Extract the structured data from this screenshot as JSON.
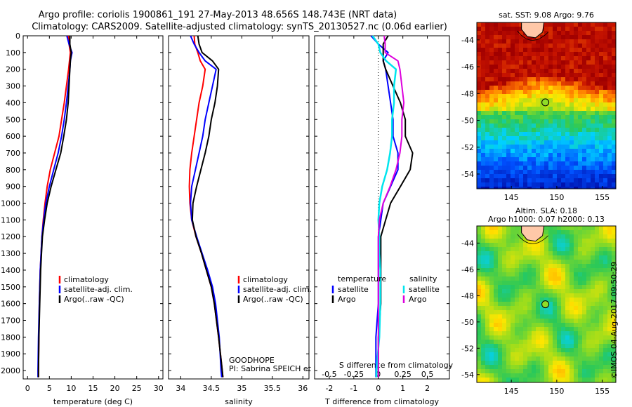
{
  "header": {
    "title_line1": "Argo profile: coriolis 1900861_191 27-May-2013 48.656S 148.743E (NRT data)",
    "title_line2": "Climatology: CARS2009. Satellite-adjusted climatology: synTS_20130527.nc (0.06d earlier)"
  },
  "depth_ticks": [
    0,
    100,
    200,
    300,
    400,
    500,
    600,
    700,
    800,
    900,
    1000,
    1100,
    1200,
    1300,
    1400,
    1500,
    1600,
    1700,
    1800,
    1900,
    2000
  ],
  "colors": {
    "climatology": "#ff0000",
    "satellite": "#0000ff",
    "argo": "#000000",
    "sal_diff_sat": "#00e5ee",
    "sal_diff_argo": "#dd00dd"
  },
  "chart_data": [
    {
      "type": "line",
      "id": "temperature",
      "xlabel": "temperature (deg C)",
      "xlim": [
        -1,
        31
      ],
      "ylim": [
        2050,
        0
      ],
      "x_ticks": [
        0,
        5,
        10,
        15,
        20,
        25,
        30
      ],
      "legend": [
        "climatology",
        "satellite-adj. clim.",
        "Argo(..raw -QC)"
      ],
      "series": [
        {
          "name": "climatology",
          "depth": [
            0,
            50,
            100,
            150,
            200,
            300,
            400,
            500,
            600,
            700,
            800,
            900,
            1000,
            1100,
            1200,
            1300,
            1400,
            1600,
            1800,
            2000,
            2040
          ],
          "values": [
            9.3,
            9.5,
            9.8,
            9.6,
            9.4,
            8.9,
            8.4,
            7.8,
            7.2,
            6.2,
            5.2,
            4.5,
            4.0,
            3.6,
            3.3,
            3.1,
            2.9,
            2.7,
            2.6,
            2.5,
            2.5
          ]
        },
        {
          "name": "satellite-adj. clim.",
          "depth": [
            0,
            50,
            100,
            150,
            200,
            300,
            400,
            500,
            600,
            700,
            800,
            900,
            1000,
            1100,
            1200,
            1300,
            1400,
            1600,
            1800,
            2000,
            2040
          ],
          "values": [
            9.0,
            9.5,
            10.2,
            9.8,
            9.7,
            9.3,
            8.9,
            8.4,
            7.8,
            7.0,
            6.0,
            5.0,
            4.2,
            3.7,
            3.3,
            3.1,
            2.9,
            2.7,
            2.5,
            2.4,
            2.4
          ]
        },
        {
          "name": "Argo(..raw -QC)",
          "depth": [
            0,
            50,
            100,
            150,
            200,
            300,
            400,
            500,
            600,
            700,
            800,
            900,
            1000,
            1100,
            1200,
            1300,
            1400,
            1600,
            1800,
            2000,
            2040
          ],
          "values": [
            9.7,
            9.7,
            10.0,
            9.8,
            9.7,
            9.5,
            9.3,
            8.9,
            8.3,
            7.6,
            6.5,
            5.4,
            4.5,
            3.9,
            3.4,
            3.2,
            3.0,
            2.8,
            2.6,
            2.5,
            2.5
          ]
        }
      ]
    },
    {
      "type": "line",
      "id": "salinity",
      "xlabel": "salinity",
      "xlim": [
        33.8,
        36.1
      ],
      "ylim": [
        2050,
        0
      ],
      "x_ticks": [
        34,
        34.5,
        35,
        35.5,
        36
      ],
      "legend": [
        "climatology",
        "satellite-adj. clim.",
        "Argo(..raw -QC)"
      ],
      "annotation_1": "GOODHOPE",
      "annotation_2": "PI: Sabrina SPEICH et Michel ARHAN",
      "series": [
        {
          "name": "climatology",
          "depth": [
            0,
            50,
            100,
            150,
            200,
            300,
            400,
            500,
            600,
            700,
            800,
            900,
            1000,
            1100,
            1200,
            1300,
            1400,
            1500,
            1600,
            1800,
            2000,
            2040
          ],
          "values": [
            34.22,
            34.23,
            34.28,
            34.32,
            34.4,
            34.36,
            34.3,
            34.26,
            34.22,
            34.18,
            34.15,
            34.14,
            34.15,
            34.18,
            34.25,
            34.34,
            34.42,
            34.5,
            34.55,
            34.62,
            34.68,
            34.69
          ]
        },
        {
          "name": "satellite-adj. clim.",
          "depth": [
            0,
            50,
            100,
            150,
            200,
            300,
            400,
            500,
            600,
            700,
            800,
            900,
            1000,
            1100,
            1200,
            1300,
            1400,
            1500,
            1600,
            1800,
            2000,
            2040
          ],
          "values": [
            34.16,
            34.22,
            34.3,
            34.4,
            34.58,
            34.52,
            34.46,
            34.4,
            34.36,
            34.3,
            34.24,
            34.18,
            34.16,
            34.18,
            34.26,
            34.35,
            34.44,
            34.52,
            34.57,
            34.63,
            34.66,
            34.67
          ]
        },
        {
          "name": "Argo(..raw -QC)",
          "depth": [
            0,
            50,
            100,
            150,
            200,
            300,
            400,
            500,
            600,
            700,
            800,
            900,
            1000,
            1100,
            1200,
            1300,
            1400,
            1500,
            1600,
            1800,
            2000,
            2040
          ],
          "values": [
            34.28,
            34.3,
            34.35,
            34.52,
            34.62,
            34.6,
            34.56,
            34.5,
            34.46,
            34.4,
            34.33,
            34.26,
            34.2,
            34.19,
            34.25,
            34.34,
            34.42,
            34.5,
            34.55,
            34.62,
            34.68,
            34.69
          ]
        }
      ]
    },
    {
      "type": "line",
      "id": "differences",
      "xlabel": "T difference from climatology",
      "top_xlabel": "S difference from climatology",
      "xlim": [
        -2.6,
        2.9
      ],
      "top_xlim": [
        -0.65,
        0.725
      ],
      "ylim": [
        2050,
        0
      ],
      "x_ticks": [
        -2,
        -1,
        0,
        1,
        2
      ],
      "top_x_ticks": [
        "-0.5",
        "-0.25",
        "0",
        "0.25",
        "0.5"
      ],
      "top_x_tick_values": [
        -0.5,
        -0.25,
        0,
        0.25,
        0.5
      ],
      "legend_left_title": "temperature",
      "legend_right_title": "salinity",
      "legend_left": [
        "satellite",
        "Argo"
      ],
      "legend_right": [
        "satellite",
        "Argo"
      ],
      "series": [
        {
          "name": "T satellite",
          "depth": [
            0,
            50,
            100,
            150,
            200,
            300,
            400,
            500,
            600,
            700,
            800,
            900,
            1000,
            1100,
            1200,
            1300,
            1400,
            1600,
            1800,
            2000,
            2040
          ],
          "values": [
            -0.3,
            0.0,
            0.4,
            0.2,
            0.3,
            0.4,
            0.5,
            0.6,
            0.6,
            0.8,
            0.8,
            0.5,
            0.2,
            0.1,
            0.0,
            0.0,
            0.0,
            0.0,
            -0.1,
            -0.1,
            -0.1
          ]
        },
        {
          "name": "T Argo",
          "depth": [
            0,
            50,
            100,
            150,
            200,
            300,
            400,
            500,
            600,
            700,
            800,
            900,
            1000,
            1100,
            1200,
            1300,
            1400,
            1600,
            1800,
            2000,
            2040
          ],
          "values": [
            0.4,
            0.2,
            0.2,
            0.2,
            0.3,
            0.6,
            0.9,
            1.1,
            1.1,
            1.4,
            1.3,
            0.9,
            0.5,
            0.3,
            0.1,
            0.1,
            0.1,
            0.1,
            0.0,
            0.0,
            0.0
          ]
        },
        {
          "name": "S satellite",
          "depth": [
            0,
            50,
            100,
            150,
            200,
            300,
            400,
            500,
            600,
            700,
            800,
            900,
            1000,
            1100,
            1200,
            1300,
            1400,
            1600,
            1800,
            2000,
            2040
          ],
          "values": [
            -0.06,
            0.0,
            0.02,
            0.08,
            0.18,
            0.16,
            0.16,
            0.14,
            0.14,
            0.12,
            0.09,
            0.04,
            0.01,
            0.0,
            0.01,
            0.01,
            0.02,
            0.02,
            0.01,
            -0.02,
            -0.02
          ]
        },
        {
          "name": "S Argo",
          "depth": [
            0,
            50,
            100,
            150,
            200,
            300,
            400,
            500,
            600,
            700,
            800,
            900,
            1000,
            1100,
            1200,
            1300,
            1400,
            1600,
            1800,
            2000,
            2040
          ],
          "values": [
            0.06,
            0.07,
            0.07,
            0.2,
            0.22,
            0.24,
            0.26,
            0.24,
            0.24,
            0.22,
            0.18,
            0.12,
            0.05,
            0.01,
            0.0,
            0.0,
            0.0,
            0.0,
            0.0,
            0.0,
            0.0
          ]
        }
      ]
    },
    {
      "type": "heatmap",
      "id": "sst_map",
      "title": "sat. SST: 9.08 Argo: 9.76",
      "xlim": [
        141.2,
        156.5
      ],
      "ylim": [
        -55.1,
        -42.7
      ],
      "x_ticks": [
        145,
        150,
        155
      ],
      "y_ticks": [
        -44,
        -46,
        -48,
        -50,
        -52,
        -54
      ],
      "argo_position": [
        148.743,
        -48.656
      ]
    },
    {
      "type": "heatmap",
      "id": "sla_map",
      "title_line1": "Altim. SLA: 0.18",
      "title_line2": "Argo h1000: 0.07 h2000: 0.13",
      "xlim": [
        141.2,
        156.5
      ],
      "ylim": [
        -54.6,
        -42.7
      ],
      "x_ticks": [
        145,
        150,
        155
      ],
      "y_ticks": [
        -44,
        -46,
        -48,
        -50,
        -52,
        -54
      ],
      "argo_position": [
        148.743,
        -48.656
      ]
    }
  ],
  "footer": {
    "stamp": "©IMOS 04-Aug-2017 09:50:29"
  }
}
